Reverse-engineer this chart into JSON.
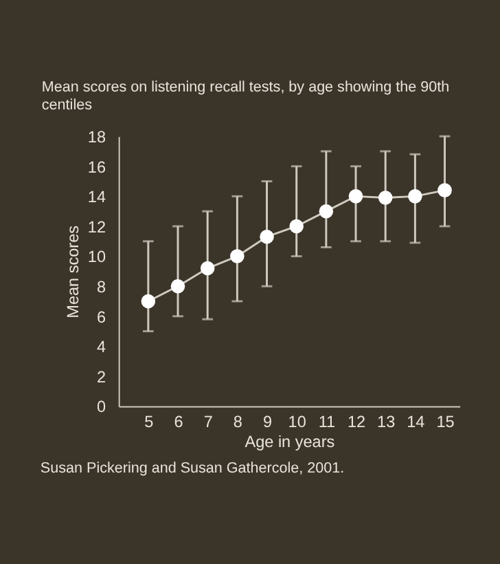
{
  "chart_data": {
    "type": "line",
    "title": "Mean scores on listening recall tests, by age showing the 90th centiles",
    "xlabel": "Age in years",
    "ylabel": "Mean scores",
    "x": [
      5,
      6,
      7,
      8,
      9,
      10,
      11,
      12,
      13,
      14,
      15
    ],
    "series": [
      {
        "color": "#ffffff",
        "values": [
          7,
          8,
          9.2,
          10,
          11.3,
          12,
          13,
          14,
          13.9,
          14,
          14.4
        ],
        "errors": [
          [
            5,
            11
          ],
          [
            6,
            12
          ],
          [
            5.8,
            13
          ],
          [
            7,
            14
          ],
          [
            8,
            15
          ],
          [
            10,
            16
          ],
          [
            10.6,
            17
          ],
          [
            11,
            16
          ],
          [
            11,
            17
          ],
          [
            10.9,
            16.8
          ],
          [
            12,
            18
          ]
        ]
      }
    ],
    "xlim": [
      4,
      15.5
    ],
    "xticks": [
      5,
      6,
      7,
      8,
      9,
      10,
      11,
      12,
      13,
      14,
      15
    ],
    "ylim": [
      0,
      18
    ],
    "yticks": [
      0,
      2,
      4,
      6,
      8,
      10,
      12,
      14,
      16,
      18
    ],
    "marker": "circle",
    "grid": false,
    "annotations": [
      "Susan Pickering and Susan Gathercole, 2001."
    ]
  }
}
